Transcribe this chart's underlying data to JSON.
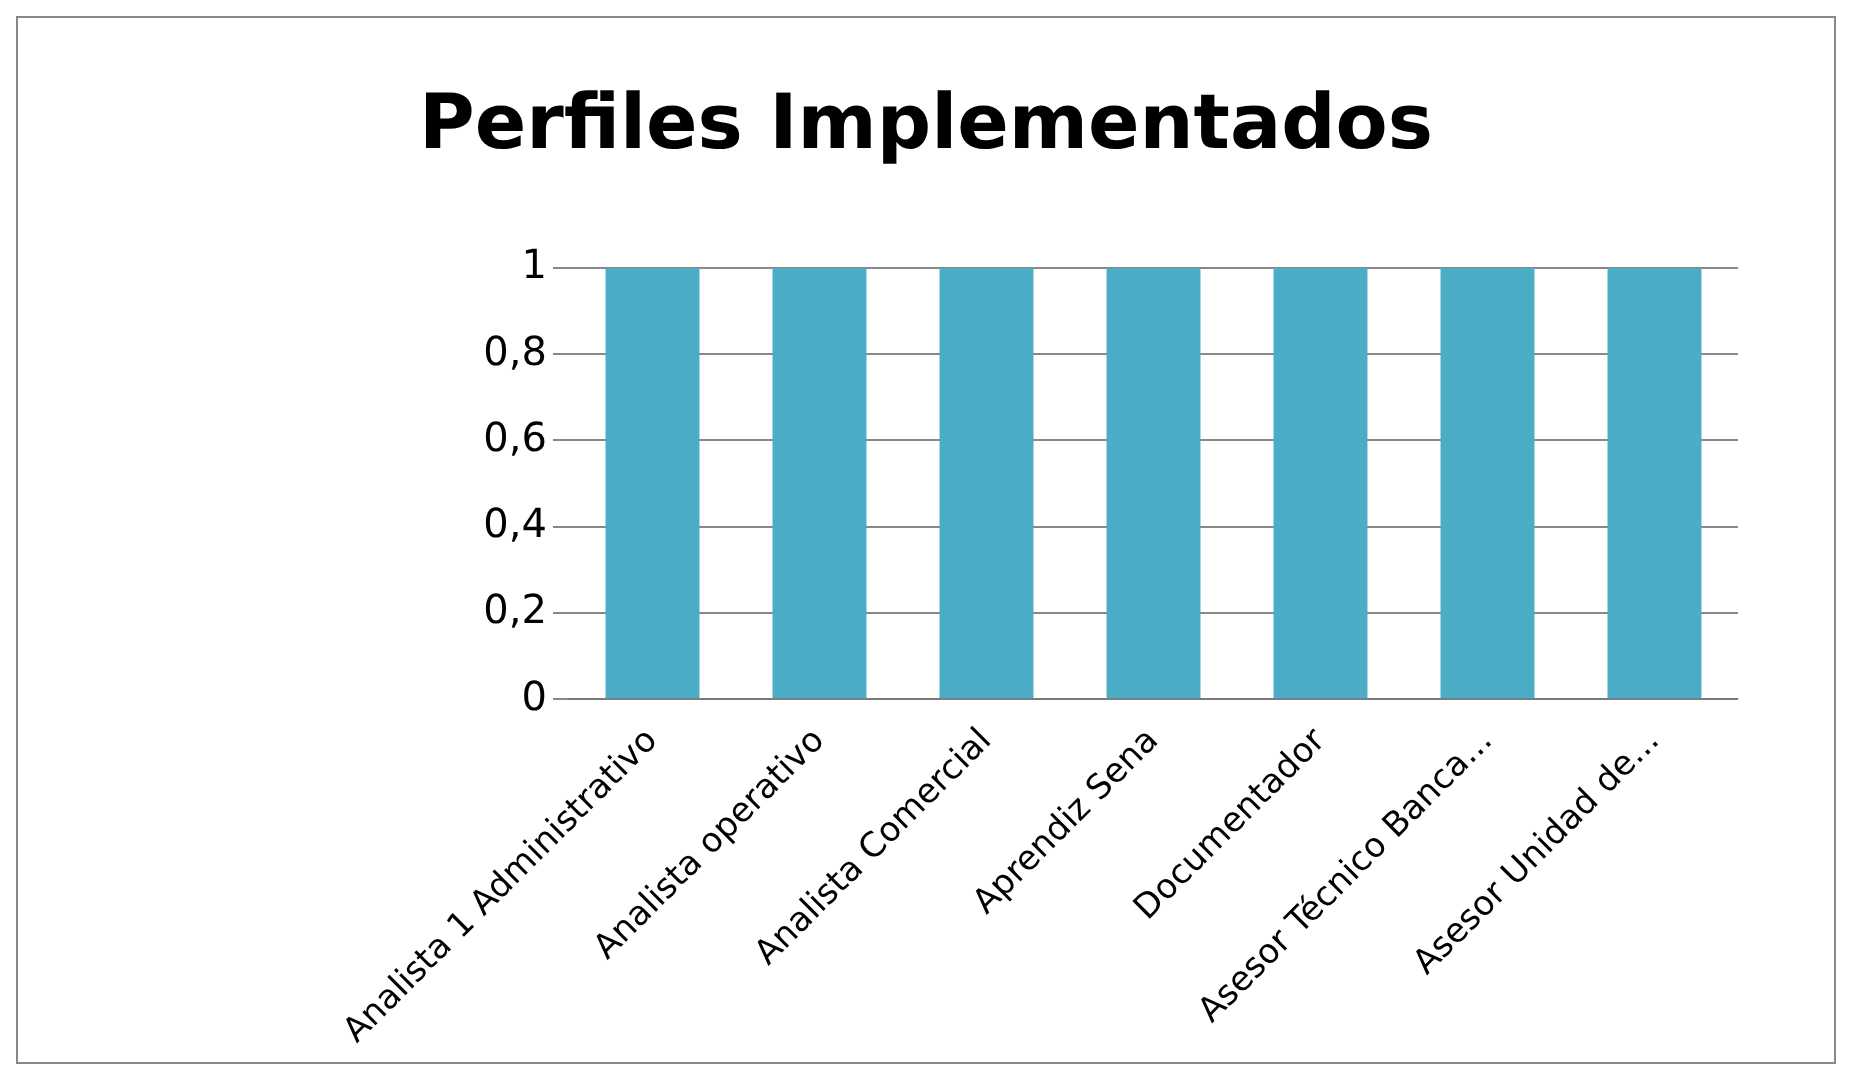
{
  "chart_data": {
    "type": "bar",
    "title": "Perfiles Implementados",
    "categories": [
      "Analista 1 Administrativo",
      "Analista operativo",
      "Analista Comercial",
      "Aprendiz Sena",
      "Documentador",
      "Asesor Técnico Banca...",
      "Asesor Unidad de..."
    ],
    "values": [
      1,
      1,
      1,
      1,
      1,
      1,
      1
    ],
    "color": "#4bacc6",
    "ylim": [
      0,
      1
    ],
    "yticks": [
      0,
      {
        "value": 0.2,
        "label": "0,2"
      },
      {
        "value": 0.4,
        "label": "0,4"
      },
      {
        "value": 0.6,
        "label": "0,6"
      },
      {
        "value": 0.8,
        "label": "0,8"
      },
      1
    ],
    "grid": "y"
  }
}
